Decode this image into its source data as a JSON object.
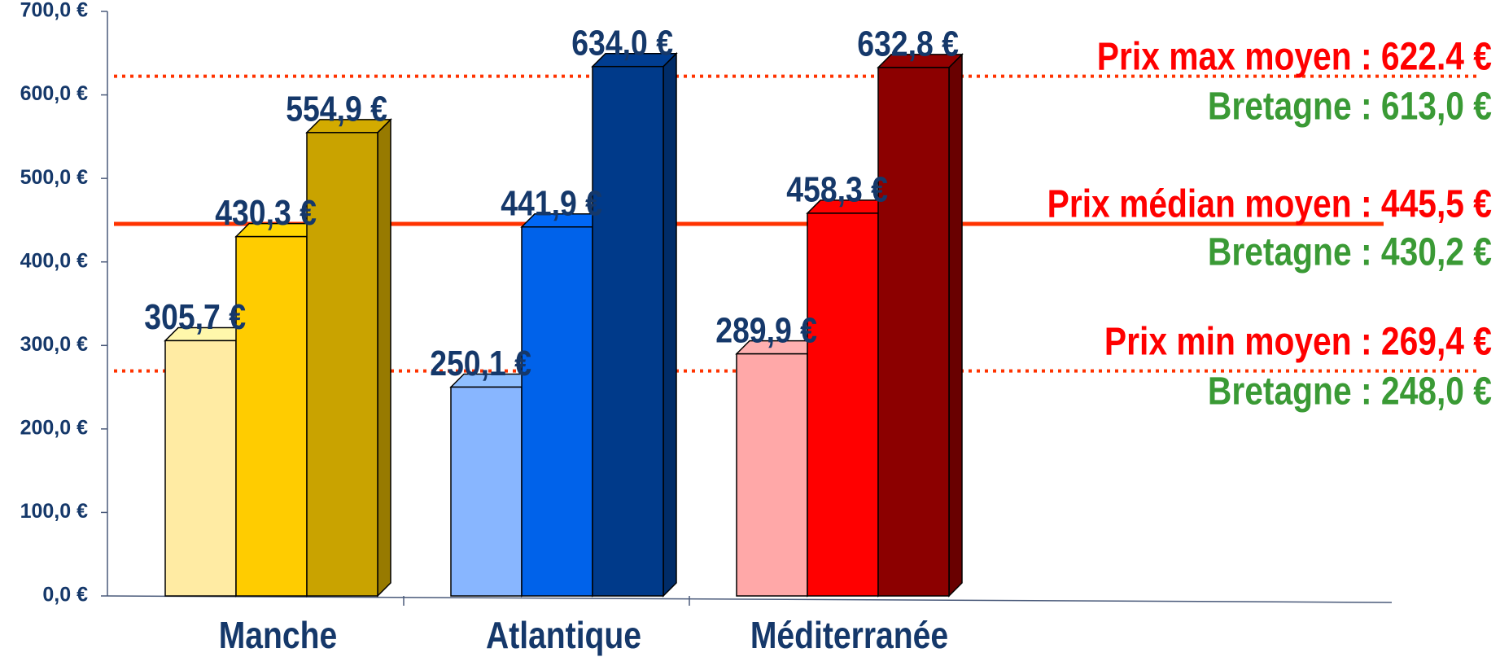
{
  "chart_data": {
    "type": "bar3d",
    "categories": [
      "Manche",
      "Atlantique",
      "Méditerranée"
    ],
    "series": [
      {
        "values": [
          305.7,
          250.1,
          289.9
        ],
        "value_labels": [
          "305,7 €",
          "250,1 €",
          "289,9 €"
        ],
        "colors": [
          "#ffeba3",
          "#88b6ff",
          "#ffa8a8"
        ]
      },
      {
        "values": [
          430.3,
          441.9,
          458.3
        ],
        "value_labels": [
          "430,3 €",
          "441,9 €",
          "458,3 €"
        ],
        "colors": [
          "#ffcc00",
          "#0062ea",
          "#ff0000"
        ]
      },
      {
        "values": [
          554.9,
          634.0,
          632.8
        ],
        "value_labels": [
          "554,9 €",
          "634,0 €",
          "632,8 €"
        ],
        "colors": [
          "#c9a300",
          "#003a8a",
          "#8c0000"
        ]
      }
    ],
    "ylim": [
      0,
      700
    ],
    "yticks": [
      {
        "value": 0,
        "label": "0,0 €"
      },
      {
        "value": 100,
        "label": "100,0 €"
      },
      {
        "value": 200,
        "label": "200,0 €"
      },
      {
        "value": 300,
        "label": "300,0 €"
      },
      {
        "value": 400,
        "label": "400,0 €"
      },
      {
        "value": 500,
        "label": "500,0 €"
      },
      {
        "value": 600,
        "label": "600,0 €"
      },
      {
        "value": 700,
        "label": "700,0 €"
      }
    ],
    "reference_lines": [
      {
        "value": 622.4,
        "label": "Prix max moyen : 622.4 €",
        "note": "Bretagne : 613,0 €",
        "style": "dotted",
        "color": "#ff3300"
      },
      {
        "value": 445.5,
        "label": "Prix médian moyen : 445,5 €",
        "note": "Bretagne : 430,2 €",
        "style": "solid",
        "color": "#ff3300"
      },
      {
        "value": 269.4,
        "label": "Prix min moyen : 269,4 €",
        "note": "Bretagne : 248,0 €",
        "style": "dotted",
        "color": "#ff3300"
      }
    ],
    "label_color": "#ff0000",
    "note_color": "#3a9a35",
    "text_color": "#15386a"
  }
}
